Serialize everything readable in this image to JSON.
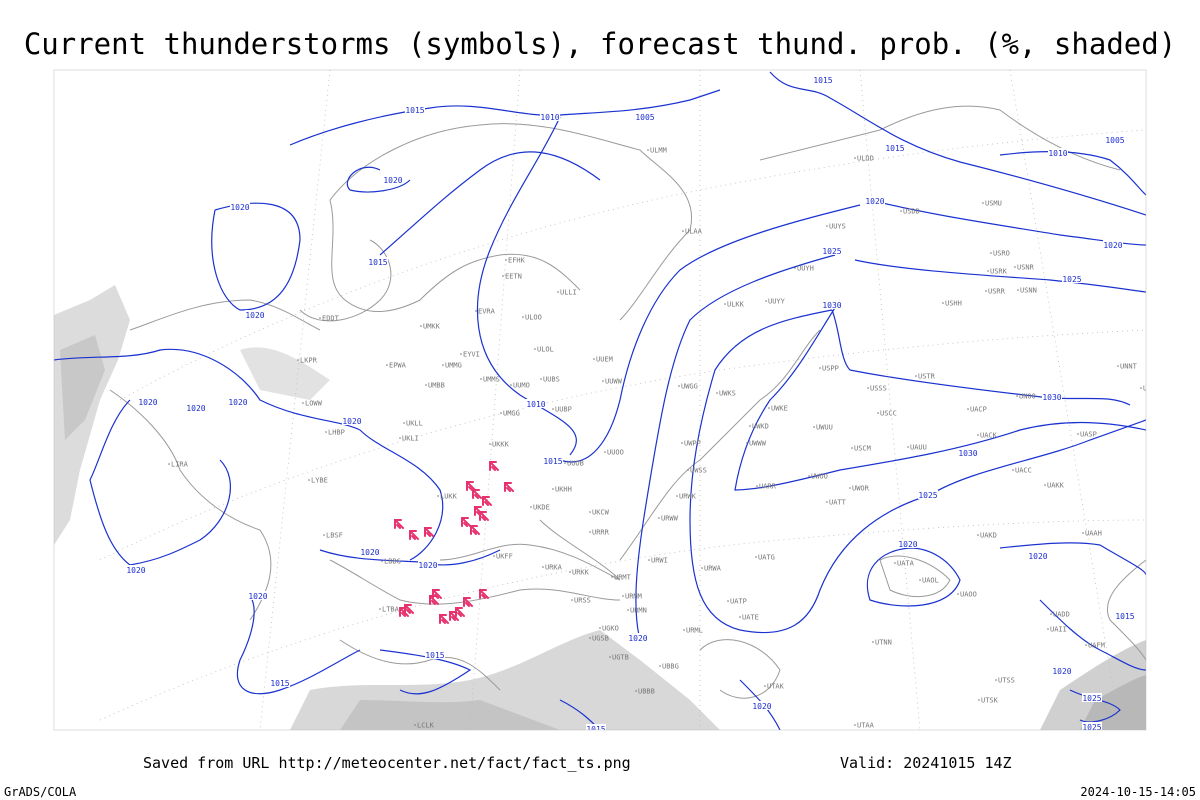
{
  "header": {
    "title": "Current thunderstorms (symbols), forecast thund. prob. (%, shaded)"
  },
  "map": {
    "isobar_labels": [
      1015,
      1010,
      1005,
      1015,
      1015,
      1010,
      1005,
      1020,
      1020,
      1020,
      1020,
      1015,
      1025,
      1025,
      1020,
      1030,
      1020,
      1020,
      1020,
      1020,
      1010,
      1015,
      1030,
      1030,
      1025,
      1020,
      1020,
      1020,
      1020,
      1020,
      1020,
      1020,
      1015,
      1015,
      1015,
      1020,
      1025,
      1020,
      1015,
      1025
    ],
    "stations": [
      "ULMM",
      "ULDD",
      "UUYS",
      "USDD",
      "USMU",
      "ULAA",
      "UUYH",
      "USRO",
      "USRK",
      "USNR",
      "USRR",
      "USNN",
      "UUYY",
      "ULKK",
      "USHH",
      "EFHK",
      "EETN",
      "ULLI",
      "ULOO",
      "EVRA",
      "UMKK",
      "EDDT",
      "ULOL",
      "UUEM",
      "EYVI",
      "UMMG",
      "EPWA",
      "LKPR",
      "UMMS",
      "UUMO",
      "UUWW",
      "UWGG",
      "USPP",
      "UUBS",
      "UMGG",
      "UUBP",
      "UMBB",
      "LOWW",
      "USSS",
      "USTR",
      "UWKS",
      "UNOO",
      "UNNT",
      "UNBB",
      "LHBP",
      "UKLL",
      "UKLI",
      "UWKE",
      "USCC",
      "UACP",
      "UWKD",
      "UWUU",
      "UACK",
      "UASP",
      "UKKK",
      "UWWW",
      "USCM",
      "UAUU",
      "UWPP",
      "UUOO",
      "UUOB",
      "LIRA",
      "LYBE",
      "UWSS",
      "UWOO",
      "UACC",
      "UKHH",
      "UARR",
      "UWOR",
      "UATT",
      "UAKK",
      "LUKK",
      "URWK",
      "UKDE",
      "URWW",
      "UKCW",
      "URRR",
      "LBSF",
      "UAKD",
      "UAAH",
      "UKFF",
      "URWI",
      "UATG",
      "UATA",
      "LBBG",
      "URKA",
      "URKK",
      "URMT",
      "URWA",
      "UAOL",
      "UAOO",
      "URMM",
      "URSS",
      "LTBA",
      "UATP",
      "URMN",
      "UATE",
      "UADD",
      "UAII",
      "UGSB",
      "URML",
      "UGKO",
      "UAFM",
      "UGTB",
      "UTNN",
      "UBBG",
      "UBBB",
      "UTAK",
      "UTSS",
      "UTSK",
      "UTAA",
      "LCLK"
    ]
  },
  "footer": {
    "source": "Saved from URL http://meteocenter.net/fact/fact_ts.png",
    "valid": "Valid: 20241015 14Z",
    "software": "GrADS/COLA",
    "timestamp": "2024-10-15-14:05"
  }
}
